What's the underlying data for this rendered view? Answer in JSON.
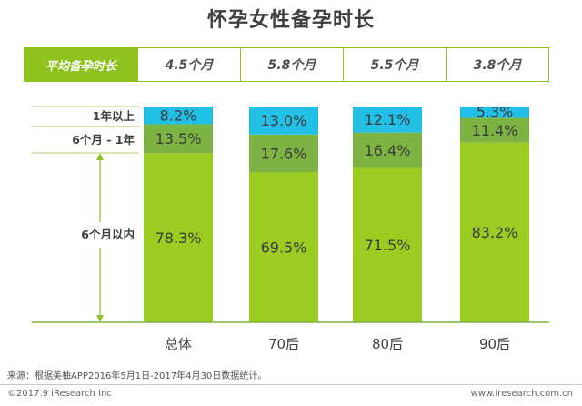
{
  "title": "怀孕女性备孕时长",
  "avg_table": {
    "label": "平均备孕时长",
    "values": [
      "4.5个月",
      "5.8个月",
      "5.5个月",
      "3.8个月"
    ]
  },
  "annotations": {
    "over_1y": "1年以上",
    "six_to_12m": "6个月 - 1年",
    "within_6m": "6个月以内"
  },
  "colors": {
    "within_6m": "#9ccc22",
    "six_to_12m": "#7cb342",
    "over_1y": "#22bfe6",
    "accent": "#8dc21f"
  },
  "source": "来源：根据美柚APP2016年5月1日-2017年4月30日数据统计。",
  "copyright": "©2017.9 iResearch Inc",
  "website": "www.iresearch.com.cn",
  "chart_data": {
    "type": "bar",
    "stacked": true,
    "categories": [
      "总体",
      "70后",
      "80后",
      "90后"
    ],
    "series": [
      {
        "name": "6个月以内",
        "values": [
          78.3,
          69.5,
          71.5,
          83.2
        ],
        "labels": [
          "78.3%",
          "69.5%",
          "71.5%",
          "83.2%"
        ]
      },
      {
        "name": "6个月 - 1年",
        "values": [
          13.5,
          17.6,
          16.4,
          11.4
        ],
        "labels": [
          "13.5%",
          "17.6%",
          "16.4%",
          "11.4%"
        ]
      },
      {
        "name": "1年以上",
        "values": [
          8.2,
          13.0,
          12.1,
          5.3
        ],
        "labels": [
          "8.2%",
          "13.0%",
          "12.1%",
          "5.3%"
        ]
      }
    ],
    "ylim": [
      0,
      100
    ],
    "grid": false
  }
}
